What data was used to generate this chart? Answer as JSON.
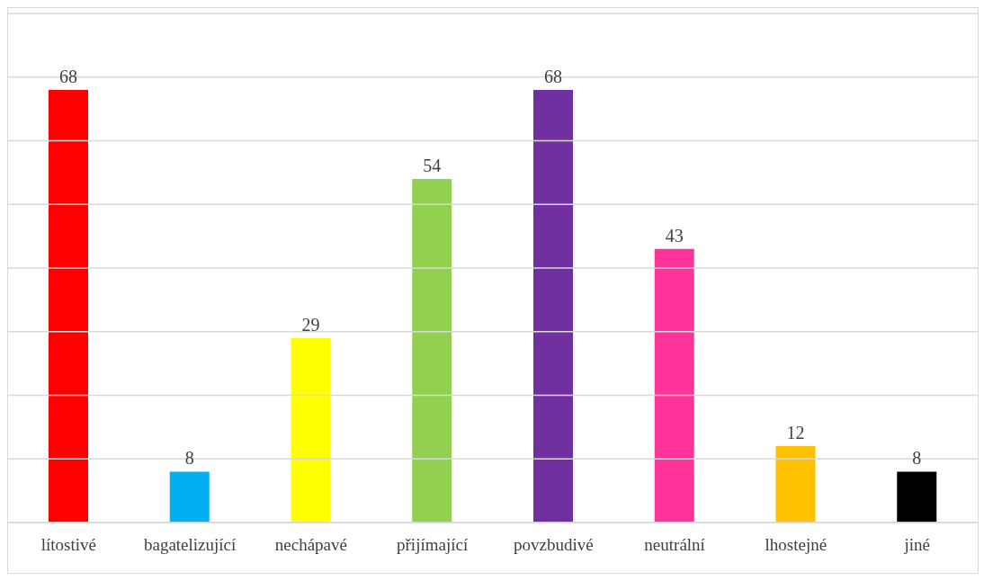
{
  "chart_data": {
    "type": "bar",
    "categories": [
      "lítostivé",
      "bagatelizující",
      "nechápavé",
      "přijímající",
      "povzbudivé",
      "neutrální",
      "lhostejné",
      "jiné"
    ],
    "values": [
      68,
      8,
      29,
      54,
      68,
      43,
      12,
      8
    ],
    "colors": [
      "#ff0000",
      "#00b0f0",
      "#ffff00",
      "#92d050",
      "#7030a0",
      "#ff3399",
      "#ffc000",
      "#000000"
    ],
    "ylim": [
      0,
      80
    ],
    "yticks": [
      {
        "value": 0,
        "label": null
      },
      {
        "value": 10,
        "label": null
      },
      {
        "value": 20,
        "label": null
      },
      {
        "value": 30,
        "label": null
      },
      {
        "value": 40,
        "label": null
      },
      {
        "value": 50,
        "label": null
      },
      {
        "value": 60,
        "label": null
      },
      {
        "value": 70,
        "label": null
      },
      {
        "value": 80,
        "label": null
      }
    ],
    "grid": "y",
    "tick_labels": "x",
    "data_labels": true
  }
}
